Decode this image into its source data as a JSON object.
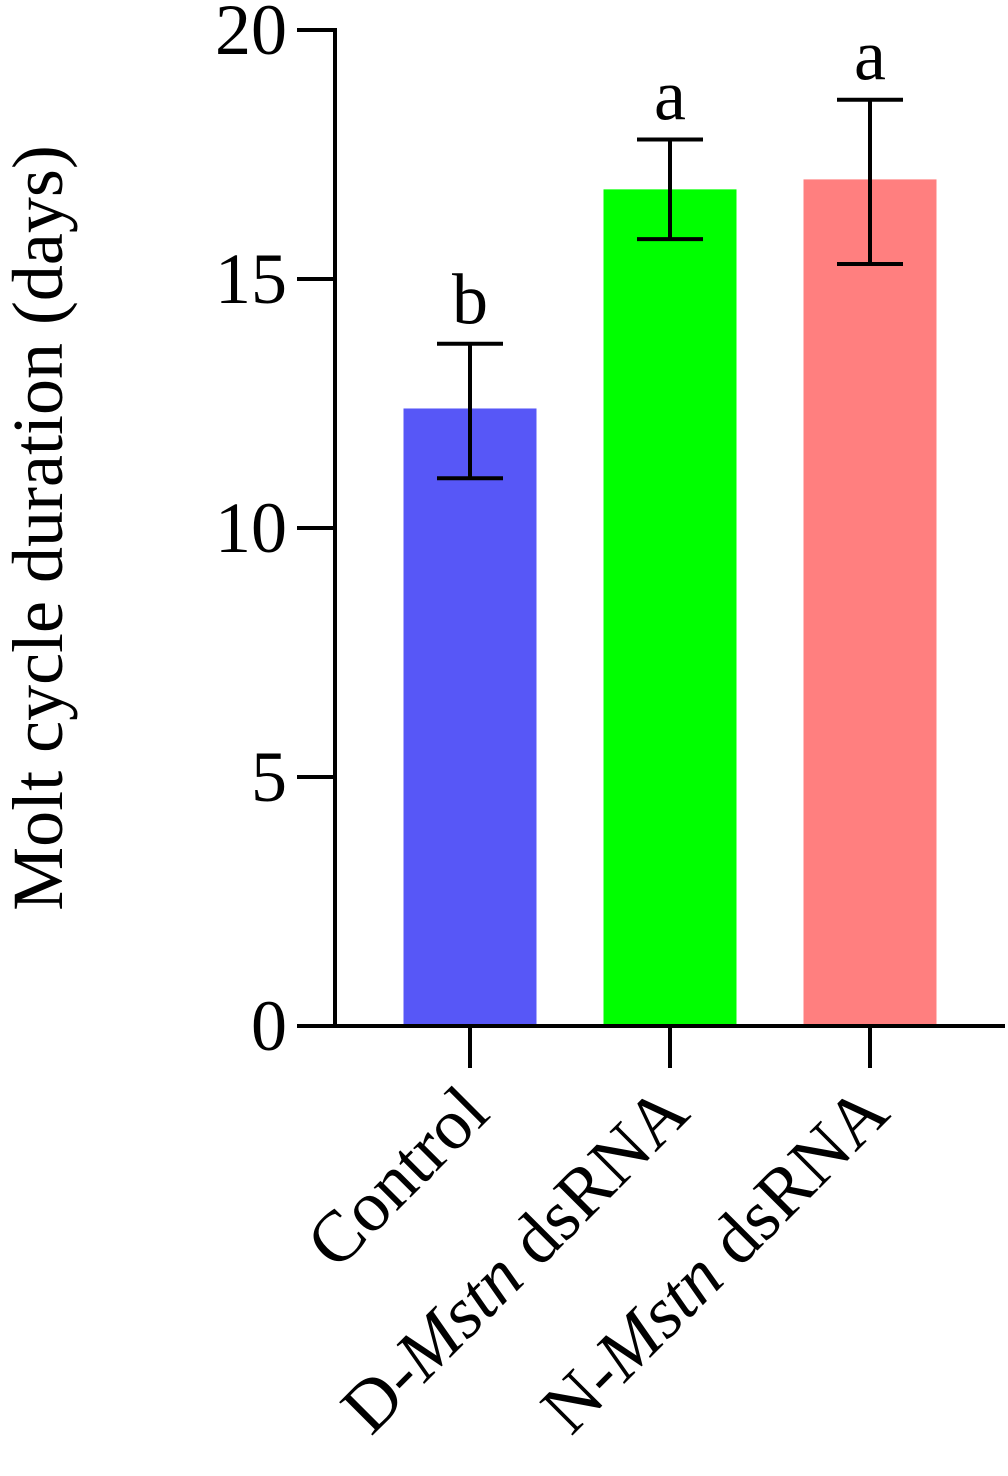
{
  "chart_data": {
    "type": "bar",
    "title": "",
    "xlabel": "",
    "ylabel": "Molt cycle duration (days)",
    "ylim": [
      0,
      20
    ],
    "yticks": [
      0,
      5,
      10,
      15,
      20
    ],
    "categories": [
      {
        "prefix": "",
        "italic": "",
        "suffix": "Control"
      },
      {
        "prefix": "D-",
        "italic": "Mstn",
        "suffix": " dsRNA"
      },
      {
        "prefix": "N-",
        "italic": "Mstn",
        "suffix": " dsRNA"
      }
    ],
    "values": [
      12.4,
      16.8,
      17.0
    ],
    "error_upper": [
      13.7,
      17.8,
      18.6
    ],
    "error_lower": [
      11.0,
      15.8,
      15.3
    ],
    "significance_letters": [
      "b",
      "a",
      "a"
    ],
    "colors": [
      "#5757F7",
      "#00FF00",
      "#FF7F7F"
    ],
    "grid": false,
    "legend": "none"
  }
}
